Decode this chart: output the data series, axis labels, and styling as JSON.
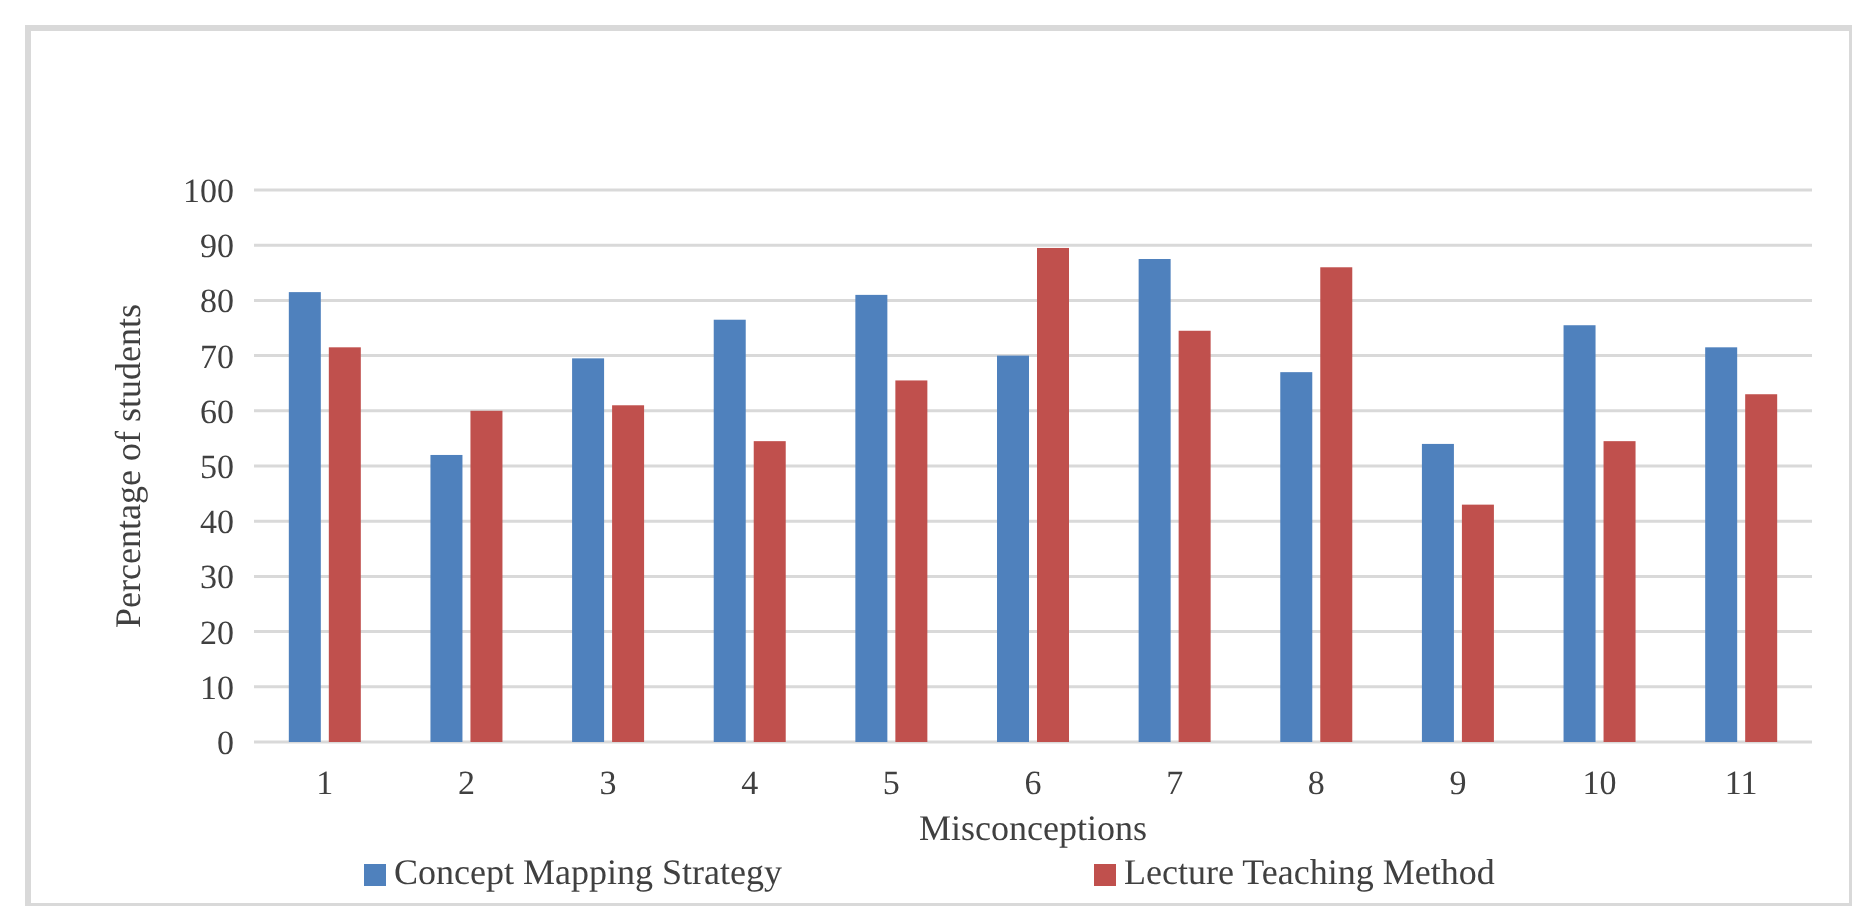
{
  "chart_data": {
    "type": "bar",
    "xlabel": "Misconceptions",
    "ylabel": "Percentage of students",
    "categories": [
      "1",
      "2",
      "3",
      "4",
      "5",
      "6",
      "7",
      "8",
      "9",
      "10",
      "11"
    ],
    "series": [
      {
        "name": "Concept Mapping Strategy",
        "color": "#4f81bd",
        "values": [
          81.5,
          52,
          69.5,
          76.5,
          81,
          70,
          87.5,
          67,
          54,
          75.5,
          71.5
        ]
      },
      {
        "name": "Lecture Teaching Method",
        "color": "#c0504d",
        "values": [
          71.5,
          60,
          61,
          54.5,
          65.5,
          89.5,
          74.5,
          86,
          43,
          54.5,
          63
        ]
      }
    ],
    "ylim": [
      0,
      100
    ],
    "yticks": [
      0,
      10,
      20,
      30,
      40,
      50,
      60,
      70,
      80,
      90,
      100
    ],
    "grid": "y",
    "legend": "bottom"
  }
}
